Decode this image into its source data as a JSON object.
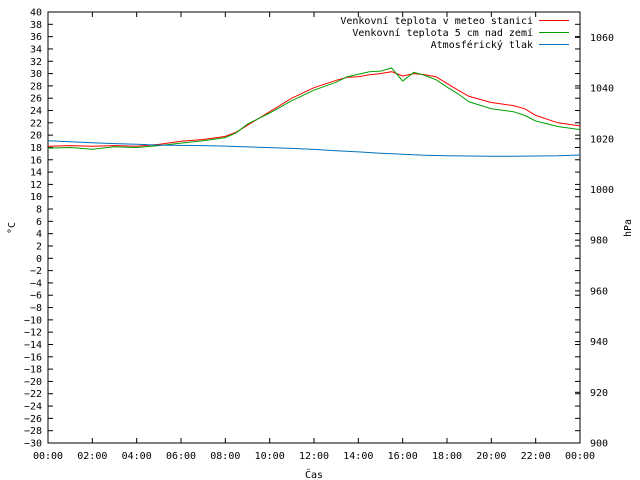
{
  "chart_data": {
    "type": "line",
    "xlabel": "Čas",
    "ylabel": "°C",
    "y2label": "hPa",
    "x_ticks": [
      "00:00",
      "02:00",
      "04:00",
      "06:00",
      "08:00",
      "10:00",
      "12:00",
      "14:00",
      "16:00",
      "18:00",
      "20:00",
      "22:00",
      "00:00"
    ],
    "xlim_hours": [
      0,
      24
    ],
    "ylim": [
      -30,
      40
    ],
    "y_tick_step": 2,
    "y2lim": [
      900,
      1070
    ],
    "y2_ticks": [
      900,
      920,
      940,
      960,
      980,
      1000,
      1020,
      1040,
      1060
    ],
    "grid": false,
    "legend_position": "top-right",
    "series": [
      {
        "name": "Venkovní teplota v meteo stanici",
        "color": "#ff0000",
        "axis": "left",
        "x": [
          0,
          1,
          2,
          3,
          4,
          5,
          6,
          7,
          8,
          8.5,
          9,
          10,
          11,
          12,
          13,
          13.5,
          14,
          14.5,
          15,
          15.5,
          16,
          16.5,
          17,
          17.5,
          18,
          18.5,
          19,
          20,
          21,
          21.5,
          22,
          23,
          24
        ],
        "y": [
          18.2,
          18.3,
          18.2,
          18.3,
          18.2,
          18.5,
          19.0,
          19.3,
          19.8,
          20.5,
          21.6,
          23.8,
          26.0,
          27.7,
          28.9,
          29.4,
          29.5,
          29.8,
          30.0,
          30.3,
          29.6,
          30.0,
          29.8,
          29.5,
          28.4,
          27.3,
          26.3,
          25.3,
          24.8,
          24.3,
          23.2,
          22.0,
          21.5
        ]
      },
      {
        "name": "Venkovní teplota 5 cm nad zemí",
        "color": "#00a000",
        "axis": "left",
        "x": [
          0,
          1,
          2,
          3,
          4,
          5,
          6,
          7,
          8,
          8.5,
          9,
          10,
          11,
          12,
          13,
          13.5,
          14,
          14.5,
          15,
          15.5,
          16,
          16.5,
          17,
          17.5,
          18,
          18.5,
          19,
          20,
          21,
          21.5,
          22,
          23,
          24
        ],
        "y": [
          17.9,
          18.0,
          17.7,
          18.1,
          18.0,
          18.3,
          18.7,
          19.1,
          19.6,
          20.4,
          21.8,
          23.6,
          25.6,
          27.3,
          28.6,
          29.5,
          29.9,
          30.3,
          30.4,
          30.9,
          28.8,
          30.2,
          29.7,
          29.0,
          27.8,
          26.7,
          25.4,
          24.3,
          23.8,
          23.2,
          22.3,
          21.4,
          20.9
        ]
      },
      {
        "name": "Atmosférický tlak",
        "color": "#0070c0",
        "axis": "right",
        "x": [
          0,
          1,
          2,
          3,
          4,
          5,
          6,
          7,
          8,
          9,
          10,
          11,
          12,
          13,
          14,
          15,
          16,
          17,
          18,
          19,
          20,
          21,
          22,
          23,
          24
        ],
        "y": [
          1019.2,
          1018.8,
          1018.4,
          1018.1,
          1017.8,
          1017.5,
          1017.4,
          1017.3,
          1017.1,
          1016.8,
          1016.5,
          1016.2,
          1015.8,
          1015.3,
          1014.8,
          1014.3,
          1013.9,
          1013.5,
          1013.3,
          1013.2,
          1013.1,
          1013.1,
          1013.2,
          1013.3,
          1013.6
        ]
      }
    ]
  }
}
